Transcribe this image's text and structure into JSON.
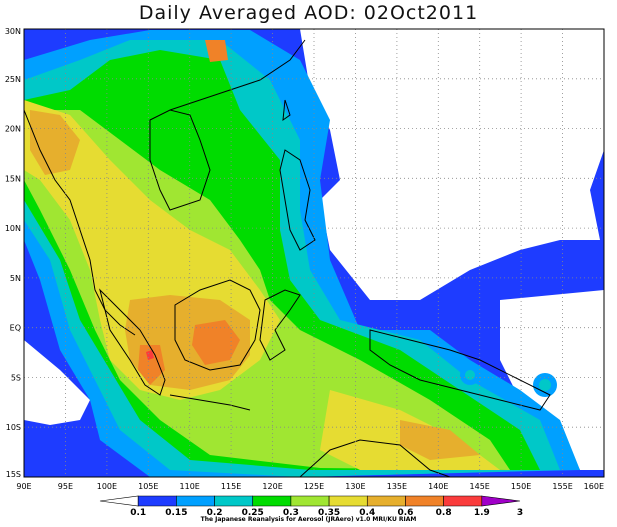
{
  "title": "Daily Averaged AOD: 02Oct2011",
  "credit": "The Japanese Reanalysis for Aerosol (JRAero) v1.0 MRI/KU RIAM",
  "lon_labels": [
    "90E",
    "95E",
    "100E",
    "105E",
    "110E",
    "115E",
    "120E",
    "125E",
    "130E",
    "135E",
    "140E",
    "145E",
    "150E",
    "155E",
    "160E"
  ],
  "lat_labels": [
    "30N",
    "25N",
    "20N",
    "15N",
    "10N",
    "5N",
    "EQ",
    "5S",
    "10S",
    "15S"
  ],
  "colorbar": {
    "labels": [
      "0.1",
      "0.15",
      "0.2",
      "0.25",
      "0.3",
      "0.35",
      "0.4",
      "0.6",
      "0.8",
      "1.9",
      "3"
    ],
    "colors": [
      "#ffffff",
      "#1e3cff",
      "#00a0ff",
      "#00c8c8",
      "#00dc00",
      "#a0e632",
      "#e6dc32",
      "#e6af2d",
      "#f08228",
      "#fa3c3c",
      "#a000c8"
    ]
  },
  "map_extent": {
    "lon": [
      90,
      160
    ],
    "lat": [
      -15,
      30
    ]
  }
}
